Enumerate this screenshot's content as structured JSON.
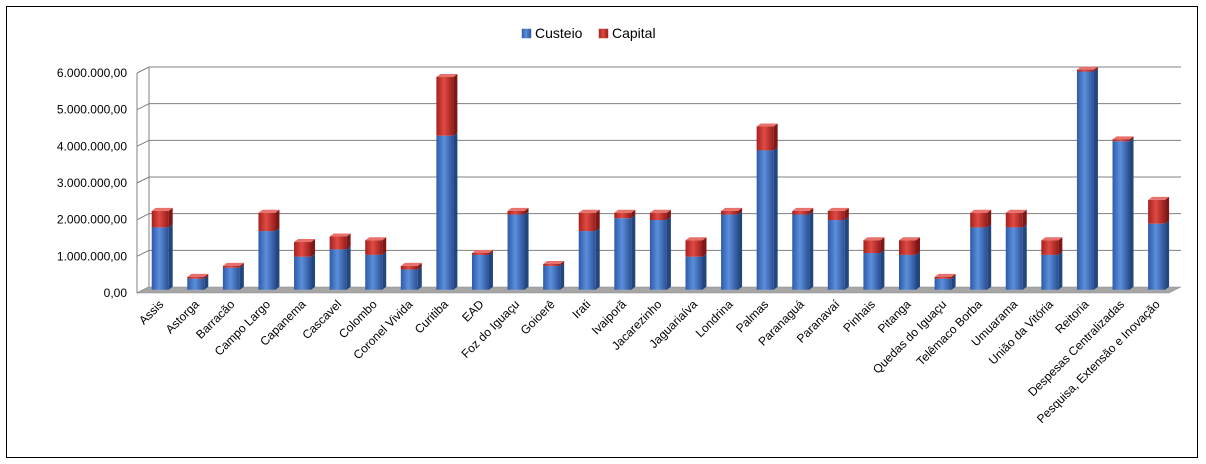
{
  "chart_data": {
    "type": "bar",
    "stacked": true,
    "categories": [
      "Assis",
      "Astorga",
      "Barracão",
      "Campo Largo",
      "Capanema",
      "Cascavel",
      "Colombo",
      "Coronel Vivida",
      "Curitiba",
      "EAD",
      "Foz do Iguaçu",
      "Goioerê",
      "Irati",
      "Ivaiporã",
      "Jacarezinho",
      "Jaguariaíva",
      "Londrina",
      "Palmas",
      "Paranaguá",
      "Paranavaí",
      "Pinhais",
      "Pitanga",
      "Quedas do Iguaçu",
      "Telêmaco Borba",
      "Umuarama",
      "União da Vitória",
      "Reitoria",
      "Despesas Centralizadas",
      "Pesquisa, Extensão e Inovação"
    ],
    "series": [
      {
        "name": "Custeio",
        "color": "#4472C4",
        "values": [
          1700000,
          300000,
          600000,
          1600000,
          900000,
          1100000,
          950000,
          550000,
          4200000,
          950000,
          2050000,
          650000,
          1600000,
          1950000,
          1900000,
          900000,
          2050000,
          3800000,
          2050000,
          1900000,
          1000000,
          950000,
          300000,
          1700000,
          1700000,
          950000,
          5950000,
          4050000,
          1800000
        ]
      },
      {
        "name": "Capital",
        "color": "#C0392B",
        "values": [
          450000,
          50000,
          50000,
          500000,
          400000,
          350000,
          400000,
          100000,
          1600000,
          50000,
          100000,
          50000,
          500000,
          150000,
          200000,
          450000,
          100000,
          650000,
          100000,
          250000,
          350000,
          400000,
          50000,
          400000,
          400000,
          400000,
          50000,
          50000,
          650000
        ]
      }
    ],
    "yticks": [
      "0,00",
      "1.000.000,00",
      "2.000.000,00",
      "3.000.000,00",
      "4.000.000,00",
      "5.000.000,00",
      "6.000.000,00"
    ],
    "ylim": [
      0,
      6000000
    ],
    "grid": true,
    "legend_position": "top-center",
    "title": "",
    "xlabel": "",
    "ylabel": ""
  }
}
